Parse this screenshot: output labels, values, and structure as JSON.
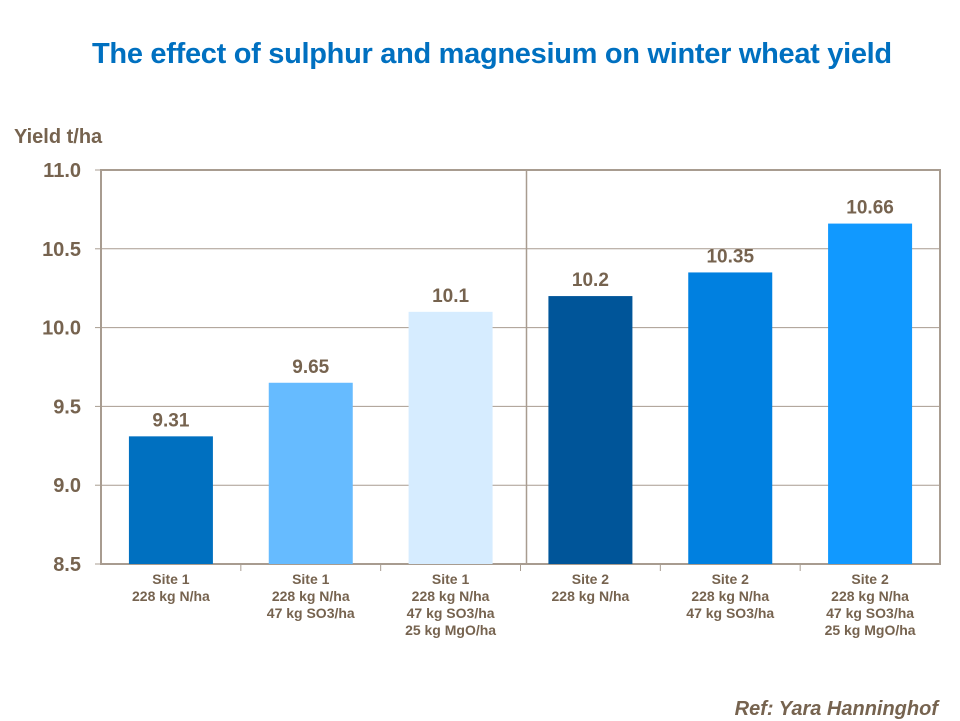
{
  "chart_data": {
    "type": "bar",
    "title": "The effect of sulphur and magnesium on winter wheat yield",
    "ylabel": "Yield t/ha",
    "xlabel": "",
    "ylim": [
      8.5,
      11.0
    ],
    "yticks": [
      "8.5",
      "9.0",
      "9.5",
      "10.0",
      "10.5",
      "11.0"
    ],
    "grid": true,
    "categories": [
      [
        "Site 1",
        "228 kg N/ha"
      ],
      [
        "Site 1",
        "228 kg N/ha",
        "47 kg SO3/ha"
      ],
      [
        "Site 1",
        "228 kg N/ha",
        "47 kg SO3/ha",
        "25 kg MgO/ha"
      ],
      [
        "Site 2",
        "228 kg N/ha"
      ],
      [
        "Site 2",
        "228 kg N/ha",
        "47 kg SO3/ha"
      ],
      [
        "Site 2",
        "228 kg N/ha",
        "47 kg SO3/ha",
        "25 kg MgO/ha"
      ]
    ],
    "values": [
      9.31,
      9.65,
      10.1,
      10.2,
      10.35,
      10.66
    ],
    "data_labels": [
      "9.31",
      "9.65",
      "10.1",
      "10.2",
      "10.35",
      "10.66"
    ],
    "colors": [
      "#0070C0",
      "#66BBFF",
      "#D6ECFF",
      "#005599",
      "#0080E0",
      "#1199FF"
    ],
    "separator_after_category": 3
  },
  "reference": "Ref: Yara Hanninghof",
  "colors": {
    "title": "#0070C0",
    "text": "#76634F",
    "axis": "#A89C90"
  }
}
